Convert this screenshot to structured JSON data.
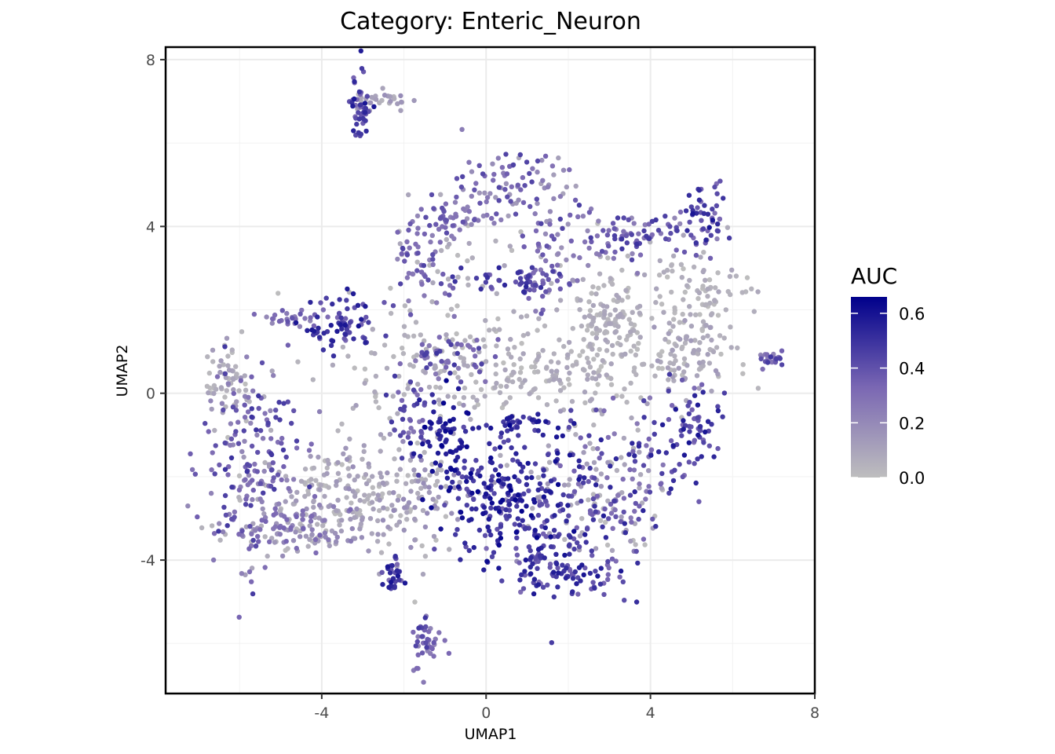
{
  "chart_data": {
    "type": "scatter",
    "title": "Category: Enteric_Neuron",
    "xlabel": "UMAP1",
    "ylabel": "UMAP2",
    "xlim": [
      -7.8,
      8.0
    ],
    "ylim": [
      -7.2,
      8.3
    ],
    "x_ticks": [
      -4,
      0,
      4,
      8
    ],
    "y_ticks": [
      -4,
      0,
      4,
      8
    ],
    "x_tick_labels": [
      "-4",
      "0",
      "4",
      "8"
    ],
    "y_tick_labels": [
      "-4",
      "0",
      "4",
      "8"
    ],
    "grid": true,
    "theme": "bw",
    "legend": {
      "title": "AUC",
      "position": "right",
      "ticks": [
        0.0,
        0.2,
        0.4,
        0.6
      ],
      "tick_labels": [
        "0.0",
        "0.2",
        "0.4",
        "0.6"
      ],
      "range": [
        0.0,
        0.66
      ]
    },
    "color_low": "#BEBEBE",
    "color_high": "#00008B",
    "series": [
      {
        "clusters": [
          {
            "cx": -3.1,
            "cy": 6.8,
            "sx": 0.15,
            "sy": 0.45,
            "n": 45,
            "auc": [
              0.3,
              0.6
            ]
          },
          {
            "cx": -2.5,
            "cy": 7.0,
            "sx": 0.35,
            "sy": 0.12,
            "n": 30,
            "auc": [
              0.0,
              0.2
            ]
          },
          {
            "cx": -5.0,
            "cy": 1.8,
            "sx": 0.3,
            "sy": 0.1,
            "n": 25,
            "auc": [
              0.2,
              0.4
            ]
          },
          {
            "cx": -3.5,
            "cy": 1.7,
            "sx": 0.5,
            "sy": 0.4,
            "n": 75,
            "auc": [
              0.3,
              0.6
            ]
          },
          {
            "cx": -6.3,
            "cy": 0.3,
            "sx": 0.3,
            "sy": 0.5,
            "n": 60,
            "auc": [
              0.0,
              0.15
            ]
          },
          {
            "cx": -5.8,
            "cy": -1.6,
            "sx": 0.6,
            "sy": 1.2,
            "n": 170,
            "auc": [
              0.2,
              0.5
            ]
          },
          {
            "cx": -4.8,
            "cy": -3.3,
            "sx": 0.9,
            "sy": 0.35,
            "n": 120,
            "auc": [
              0.0,
              0.35
            ]
          },
          {
            "cx": -3.6,
            "cy": -2.4,
            "sx": 1.0,
            "sy": 0.55,
            "n": 150,
            "auc": [
              0.0,
              0.15
            ]
          },
          {
            "cx": -1.8,
            "cy": -2.3,
            "sx": 0.9,
            "sy": 0.8,
            "n": 130,
            "auc": [
              0.0,
              0.2
            ]
          },
          {
            "cx": -2.3,
            "cy": -4.3,
            "sx": 0.15,
            "sy": 0.25,
            "n": 30,
            "auc": [
              0.3,
              0.6
            ]
          },
          {
            "cx": -1.5,
            "cy": -6.0,
            "sx": 0.2,
            "sy": 0.35,
            "n": 40,
            "auc": [
              0.2,
              0.5
            ]
          },
          {
            "cx": -1.5,
            "cy": 3.3,
            "sx": 0.4,
            "sy": 0.6,
            "n": 60,
            "auc": [
              0.2,
              0.45
            ]
          },
          {
            "cx": -0.8,
            "cy": 4.2,
            "sx": 0.4,
            "sy": 0.2,
            "n": 40,
            "auc": [
              0.2,
              0.4
            ]
          },
          {
            "cx": 0.8,
            "cy": 4.9,
            "sx": 0.7,
            "sy": 0.4,
            "n": 90,
            "auc": [
              0.1,
              0.45
            ]
          },
          {
            "cx": 0.6,
            "cy": 2.7,
            "sx": 0.7,
            "sy": 0.2,
            "n": 55,
            "auc": [
              0.3,
              0.55
            ]
          },
          {
            "cx": 1.7,
            "cy": 3.2,
            "sx": 0.4,
            "sy": 0.5,
            "n": 40,
            "auc": [
              0.15,
              0.4
            ]
          },
          {
            "cx": -0.6,
            "cy": 3.0,
            "sx": 1.0,
            "sy": 0.8,
            "n": 40,
            "auc": [
              0.0,
              0.1
            ]
          },
          {
            "cx": 3.6,
            "cy": 3.8,
            "sx": 0.9,
            "sy": 0.3,
            "n": 90,
            "auc": [
              0.2,
              0.5
            ]
          },
          {
            "cx": 5.3,
            "cy": 4.3,
            "sx": 0.25,
            "sy": 0.35,
            "n": 45,
            "auc": [
              0.3,
              0.6
            ]
          },
          {
            "cx": 3.0,
            "cy": 1.8,
            "sx": 0.5,
            "sy": 0.6,
            "n": 130,
            "auc": [
              0.0,
              0.1
            ]
          },
          {
            "cx": 5.2,
            "cy": 2.3,
            "sx": 0.6,
            "sy": 0.6,
            "n": 100,
            "auc": [
              0.0,
              0.1
            ]
          },
          {
            "cx": 4.9,
            "cy": 0.8,
            "sx": 0.6,
            "sy": 0.5,
            "n": 80,
            "auc": [
              0.0,
              0.15
            ]
          },
          {
            "cx": 1.0,
            "cy": 0.6,
            "sx": 1.6,
            "sy": 0.6,
            "n": 200,
            "auc": [
              0.0,
              0.1
            ]
          },
          {
            "cx": -1.8,
            "cy": 0.4,
            "sx": 1.2,
            "sy": 0.8,
            "n": 70,
            "auc": [
              0.0,
              0.1
            ]
          },
          {
            "cx": -0.9,
            "cy": 0.9,
            "sx": 0.6,
            "sy": 0.25,
            "n": 45,
            "auc": [
              0.25,
              0.5
            ]
          },
          {
            "cx": -1.9,
            "cy": -0.6,
            "sx": 0.3,
            "sy": 0.5,
            "n": 40,
            "auc": [
              0.25,
              0.5
            ]
          },
          {
            "cx": -1.0,
            "cy": -1.0,
            "sx": 0.3,
            "sy": 0.5,
            "n": 60,
            "auc": [
              0.5,
              0.66
            ]
          },
          {
            "cx": 0.3,
            "cy": -2.5,
            "sx": 0.8,
            "sy": 0.7,
            "n": 160,
            "auc": [
              0.4,
              0.66
            ]
          },
          {
            "cx": 1.6,
            "cy": -2.8,
            "sx": 0.9,
            "sy": 0.7,
            "n": 140,
            "auc": [
              0.3,
              0.6
            ]
          },
          {
            "cx": 2.0,
            "cy": -4.3,
            "sx": 0.7,
            "sy": 0.35,
            "n": 100,
            "auc": [
              0.3,
              0.6
            ]
          },
          {
            "cx": 1.2,
            "cy": -0.8,
            "sx": 0.6,
            "sy": 0.2,
            "n": 45,
            "auc": [
              0.4,
              0.6
            ]
          },
          {
            "cx": 3.5,
            "cy": -1.8,
            "sx": 0.9,
            "sy": 0.8,
            "n": 90,
            "auc": [
              0.25,
              0.55
            ]
          },
          {
            "cx": 5.0,
            "cy": -0.8,
            "sx": 0.4,
            "sy": 0.4,
            "n": 60,
            "auc": [
              0.3,
              0.6
            ]
          },
          {
            "cx": 2.6,
            "cy": -2.2,
            "sx": 0.8,
            "sy": 0.9,
            "n": 90,
            "auc": [
              0.0,
              0.15
            ]
          },
          {
            "cx": 7.0,
            "cy": 0.8,
            "sx": 0.2,
            "sy": 0.12,
            "n": 25,
            "auc": [
              0.2,
              0.5
            ]
          }
        ]
      }
    ]
  }
}
